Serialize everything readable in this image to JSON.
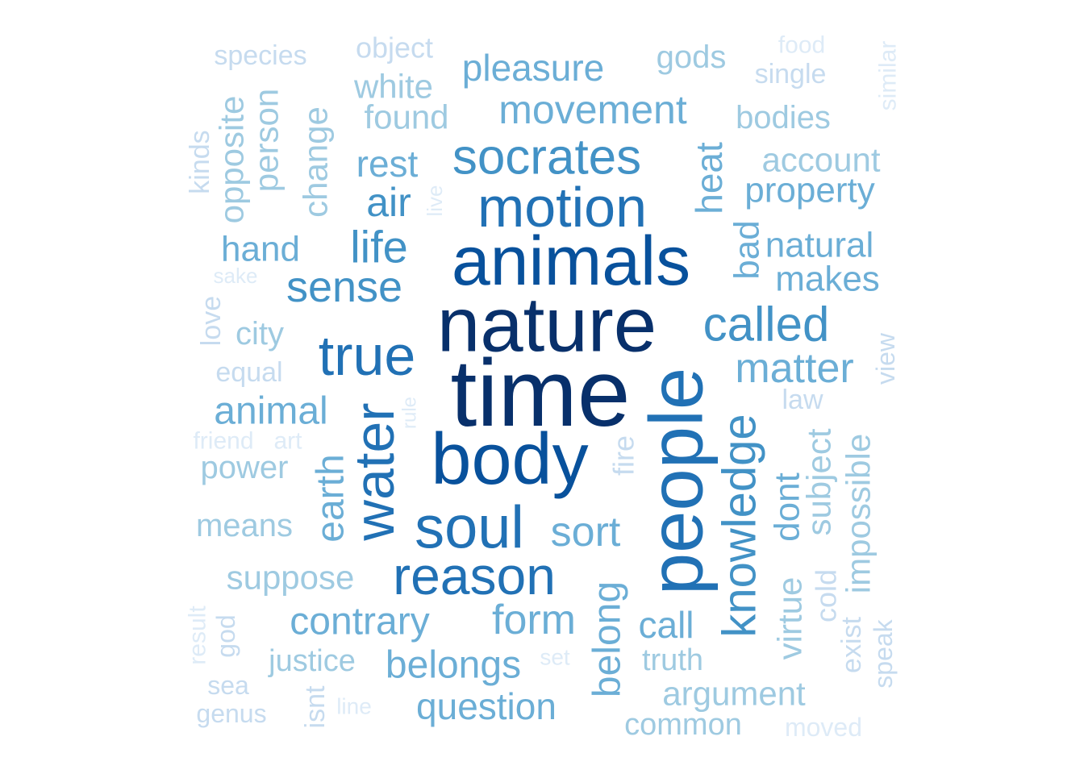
{
  "palette": {
    "darkest": "#08306b",
    "dark": "#08519c",
    "medium_dark": "#2171b5",
    "medium": "#4292c6",
    "medium_light": "#6baed6",
    "light": "#9ecae1",
    "lighter": "#c6dbef",
    "lightest": "#deebf7"
  },
  "words": [
    {
      "text": "time",
      "color": "#08306b",
      "weight": 1.0
    },
    {
      "text": "nature",
      "color": "#08306b",
      "weight": 0.84
    },
    {
      "text": "animals",
      "color": "#08519c",
      "weight": 0.82
    },
    {
      "text": "body",
      "color": "#08519c",
      "weight": 0.8
    },
    {
      "text": "people",
      "color": "#2171b5",
      "weight": 0.78
    },
    {
      "text": "motion",
      "color": "#2171b5",
      "weight": 0.7
    },
    {
      "text": "water",
      "color": "#2171b5",
      "weight": 0.66
    },
    {
      "text": "reason",
      "color": "#2171b5",
      "weight": 0.64
    },
    {
      "text": "soul",
      "color": "#2171b5",
      "weight": 0.62
    },
    {
      "text": "socrates",
      "color": "#4292c6",
      "weight": 0.58
    },
    {
      "text": "true",
      "color": "#2171b5",
      "weight": 0.58
    },
    {
      "text": "knowledge",
      "color": "#4292c6",
      "weight": 0.54
    },
    {
      "text": "called",
      "color": "#4292c6",
      "weight": 0.5
    },
    {
      "text": "sense",
      "color": "#4292c6",
      "weight": 0.48
    },
    {
      "text": "life",
      "color": "#4292c6",
      "weight": 0.48
    },
    {
      "text": "movement",
      "color": "#6baed6",
      "weight": 0.46
    },
    {
      "text": "form",
      "color": "#6baed6",
      "weight": 0.46
    },
    {
      "text": "matter",
      "color": "#6baed6",
      "weight": 0.46
    },
    {
      "text": "sort",
      "color": "#6baed6",
      "weight": 0.46
    },
    {
      "text": "air",
      "color": "#4292c6",
      "weight": 0.44
    },
    {
      "text": "animal",
      "color": "#6baed6",
      "weight": 0.44
    },
    {
      "text": "contrary",
      "color": "#6baed6",
      "weight": 0.44
    },
    {
      "text": "earth",
      "color": "#6baed6",
      "weight": 0.44
    },
    {
      "text": "belongs",
      "color": "#6baed6",
      "weight": 0.44
    },
    {
      "text": "belong",
      "color": "#6baed6",
      "weight": 0.42
    },
    {
      "text": "pleasure",
      "color": "#6baed6",
      "weight": 0.42
    },
    {
      "text": "rest",
      "color": "#6baed6",
      "weight": 0.4
    },
    {
      "text": "heat",
      "color": "#6baed6",
      "weight": 0.4
    },
    {
      "text": "question",
      "color": "#6baed6",
      "weight": 0.4
    },
    {
      "text": "call",
      "color": "#6baed6",
      "weight": 0.4
    },
    {
      "text": "hand",
      "color": "#6baed6",
      "weight": 0.38
    },
    {
      "text": "dont",
      "color": "#6baed6",
      "weight": 0.4
    },
    {
      "text": "bad",
      "color": "#6baed6",
      "weight": 0.38
    },
    {
      "text": "property",
      "color": "#6baed6",
      "weight": 0.38
    },
    {
      "text": "natural",
      "color": "#6baed6",
      "weight": 0.38
    },
    {
      "text": "makes",
      "color": "#6baed6",
      "weight": 0.38
    },
    {
      "text": "argument",
      "color": "#9ecae1",
      "weight": 0.38
    },
    {
      "text": "subject",
      "color": "#9ecae1",
      "weight": 0.38
    },
    {
      "text": "impossible",
      "color": "#9ecae1",
      "weight": 0.38
    },
    {
      "text": "suppose",
      "color": "#9ecae1",
      "weight": 0.38
    },
    {
      "text": "account",
      "color": "#9ecae1",
      "weight": 0.36
    },
    {
      "text": "change",
      "color": "#9ecae1",
      "weight": 0.36
    },
    {
      "text": "opposite",
      "color": "#9ecae1",
      "weight": 0.36
    },
    {
      "text": "person",
      "color": "#9ecae1",
      "weight": 0.36
    },
    {
      "text": "virtue",
      "color": "#9ecae1",
      "weight": 0.36
    },
    {
      "text": "white",
      "color": "#9ecae1",
      "weight": 0.36
    },
    {
      "text": "found",
      "color": "#9ecae1",
      "weight": 0.36
    },
    {
      "text": "gods",
      "color": "#9ecae1",
      "weight": 0.34
    },
    {
      "text": "power",
      "color": "#9ecae1",
      "weight": 0.34
    },
    {
      "text": "means",
      "color": "#9ecae1",
      "weight": 0.34
    },
    {
      "text": "bodies",
      "color": "#9ecae1",
      "weight": 0.34
    },
    {
      "text": "city",
      "color": "#9ecae1",
      "weight": 0.34
    },
    {
      "text": "justice",
      "color": "#9ecae1",
      "weight": 0.32
    },
    {
      "text": "truth",
      "color": "#9ecae1",
      "weight": 0.32
    },
    {
      "text": "common",
      "color": "#9ecae1",
      "weight": 0.32
    },
    {
      "text": "cold",
      "color": "#c6dbef",
      "weight": 0.32
    },
    {
      "text": "fire",
      "color": "#c6dbef",
      "weight": 0.32
    },
    {
      "text": "object",
      "color": "#c6dbef",
      "weight": 0.32
    },
    {
      "text": "species",
      "color": "#c6dbef",
      "weight": 0.3
    },
    {
      "text": "single",
      "color": "#c6dbef",
      "weight": 0.3
    },
    {
      "text": "kinds",
      "color": "#c6dbef",
      "weight": 0.3
    },
    {
      "text": "love",
      "color": "#c6dbef",
      "weight": 0.3
    },
    {
      "text": "law",
      "color": "#c6dbef",
      "weight": 0.3
    },
    {
      "text": "equal",
      "color": "#c6dbef",
      "weight": 0.3
    },
    {
      "text": "exist",
      "color": "#c6dbef",
      "weight": 0.3
    },
    {
      "text": "isnt",
      "color": "#c6dbef",
      "weight": 0.3
    },
    {
      "text": "god",
      "color": "#c6dbef",
      "weight": 0.28
    },
    {
      "text": "view",
      "color": "#c6dbef",
      "weight": 0.28
    },
    {
      "text": "speak",
      "color": "#c6dbef",
      "weight": 0.28
    },
    {
      "text": "sea",
      "color": "#c6dbef",
      "weight": 0.28
    },
    {
      "text": "genus",
      "color": "#c6dbef",
      "weight": 0.28
    },
    {
      "text": "moved",
      "color": "#deebf7",
      "weight": 0.28
    },
    {
      "text": "similar",
      "color": "#deebf7",
      "weight": 0.26
    },
    {
      "text": "food",
      "color": "#deebf7",
      "weight": 0.26
    },
    {
      "text": "friend",
      "color": "#deebf7",
      "weight": 0.26
    },
    {
      "text": "art",
      "color": "#deebf7",
      "weight": 0.26
    },
    {
      "text": "result",
      "color": "#deebf7",
      "weight": 0.26
    },
    {
      "text": "set",
      "color": "#deebf7",
      "weight": 0.26
    },
    {
      "text": "line",
      "color": "#deebf7",
      "weight": 0.26
    },
    {
      "text": "live",
      "color": "#deebf7",
      "weight": 0.24
    },
    {
      "text": "rule",
      "color": "#deebf7",
      "weight": 0.24
    },
    {
      "text": "sake",
      "color": "#deebf7",
      "weight": 0.24
    }
  ]
}
